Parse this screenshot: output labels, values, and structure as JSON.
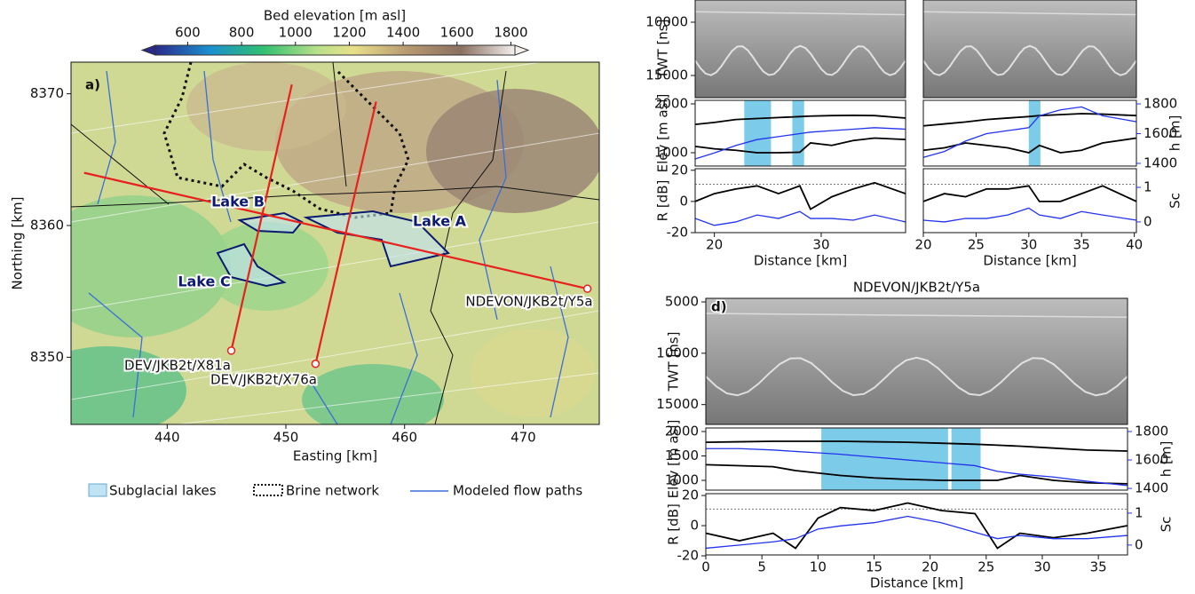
{
  "chart_data": [
    {
      "type": "map",
      "panel_label": "a)",
      "colorbar_label": "Bed elevation [m asl]",
      "clim": [
        480,
        1815
      ],
      "colorbar_ticks": [
        600,
        800,
        1000,
        1200,
        1400,
        1600,
        1800
      ],
      "xlabel": "Easting [km]",
      "ylabel": "Northing [km]",
      "xlim": [
        431.9,
        476.4
      ],
      "ylim": [
        8344.9,
        8372.4
      ],
      "xticks": [
        440,
        450,
        460,
        470
      ],
      "yticks": [
        8350,
        8360,
        8370
      ],
      "lakes": [
        "Lake A",
        "Lake B",
        "Lake C"
      ],
      "profiles": [
        {
          "name": "NDEVON/JKB2t/Y5a",
          "color": "#e8201e",
          "x": [
            475.4,
            433.0
          ],
          "y": [
            8355.2,
            8364.0
          ]
        },
        {
          "name": "DEV/JKB2t/X81a",
          "color": "#e8201e",
          "x": [
            445.4,
            450.5
          ],
          "y": [
            8350.5,
            8370.7
          ]
        },
        {
          "name": "DEV/JKB2t/X76a",
          "color": "#e8201e",
          "x": [
            452.5,
            457.6
          ],
          "y": [
            8349.5,
            8369.4
          ]
        }
      ],
      "legend": [
        "Subglacial lakes",
        "Brine network",
        "Modeled flow paths"
      ]
    },
    {
      "type": "profile",
      "xlabel": "Distance [km]",
      "xlim": [
        18.2,
        37.9
      ],
      "xticks": [
        20,
        30
      ],
      "radargram": {
        "ylabel": "TWT [ns]",
        "ylim": [
          17083,
          7917
        ],
        "yticks": [
          10000,
          15000
        ]
      },
      "elevation": {
        "ylabel": "Elev [m asl]",
        "ylim": [
          727,
          2073
        ],
        "yticks": [
          1000,
          2000
        ],
        "y2lim": [
          1382,
          1824
        ],
        "lake_spans": [
          [
            22.8,
            25.3
          ],
          [
            27.3,
            28.4
          ]
        ],
        "x": [
          18.2,
          20,
          22,
          24,
          26,
          28,
          29,
          31,
          33,
          35,
          37.9
        ],
        "series": [
          {
            "color": "#000000",
            "values": [
              1580,
              1620,
              1680,
              1700,
              1720,
              1740,
              1750,
              1760,
              1765,
              1760,
              1710
            ]
          },
          {
            "color": "#000000",
            "values": [
              1130,
              1080,
              1050,
              1000,
              1000,
              1010,
              1200,
              1150,
              1250,
              1300,
              1270
            ]
          },
          {
            "color": "#2233ee",
            "axis": "y2",
            "values": [
              1430,
              1470,
              1520,
              1560,
              1580,
              1600,
              1610,
              1620,
              1630,
              1640,
              1630
            ]
          }
        ]
      },
      "reflectivity": {
        "ylabel": "R [dB]",
        "ylim": [
          -20,
          21
        ],
        "yticks": [
          -20,
          0,
          20
        ],
        "y2lim": [
          -0.31,
          1.54
        ],
        "reference_line": 11,
        "x": [
          18.2,
          20,
          22,
          24,
          26,
          28,
          29,
          31,
          33,
          35,
          37.9
        ],
        "series": [
          {
            "color": "#000000",
            "values": [
              0,
              5,
              8,
              10,
              5,
              10,
              -5,
              3,
              8,
              12,
              5
            ]
          },
          {
            "color": "#2233ee",
            "axis": "y2",
            "values": [
              0.1,
              -0.1,
              0,
              0.2,
              0.1,
              0.3,
              0.1,
              0.1,
              0.05,
              0.2,
              0
            ]
          }
        ]
      }
    },
    {
      "type": "profile",
      "xlabel": "Distance [km]",
      "xlim": [
        20,
        40.2
      ],
      "xticks": [
        20,
        25,
        30,
        35,
        40
      ],
      "radargram": {
        "ylim": [
          17083,
          7917
        ]
      },
      "elevation": {
        "y2label": "h [m]",
        "ylim": [
          727,
          2073
        ],
        "y2lim": [
          1382,
          1824
        ],
        "y2ticks": [
          1400,
          1600,
          1800
        ],
        "lake_spans": [
          [
            30,
            31.1
          ]
        ],
        "x": [
          20,
          22,
          24,
          26,
          28,
          30,
          31,
          33,
          35,
          37,
          40.2
        ],
        "series": [
          {
            "color": "#000000",
            "values": [
              1550,
              1590,
              1630,
              1680,
              1710,
              1740,
              1760,
              1780,
              1800,
              1790,
              1760
            ]
          },
          {
            "color": "#000000",
            "values": [
              1050,
              1100,
              1200,
              1150,
              1100,
              1000,
              1150,
              1000,
              1050,
              1200,
              1300
            ]
          },
          {
            "color": "#2233ee",
            "axis": "y2",
            "values": [
              1440,
              1480,
              1550,
              1600,
              1620,
              1640,
              1720,
              1760,
              1780,
              1720,
              1680
            ]
          }
        ]
      },
      "reflectivity": {
        "y2label": "Sc",
        "ylim": [
          -20,
          21
        ],
        "y2lim": [
          -0.31,
          1.54
        ],
        "y2ticks": [
          0,
          1
        ],
        "reference_line": 11,
        "x": [
          20,
          22,
          24,
          26,
          28,
          30,
          31,
          33,
          35,
          37,
          40.2
        ],
        "series": [
          {
            "color": "#000000",
            "values": [
              0,
              5,
              3,
              8,
              8,
              10,
              0,
              0,
              5,
              10,
              0
            ]
          },
          {
            "color": "#2233ee",
            "axis": "y2",
            "values": [
              0.05,
              0,
              0.1,
              0.1,
              0.2,
              0.4,
              0.2,
              0.1,
              0.3,
              0.2,
              0.05
            ]
          }
        ]
      }
    },
    {
      "type": "profile",
      "title": "NDEVON/JKB2t/Y5a",
      "panel_label": "d)",
      "xlabel": "Distance [km]",
      "xlim": [
        0,
        37.6
      ],
      "xticks": [
        0,
        5,
        10,
        15,
        20,
        25,
        30,
        35
      ],
      "radargram": {
        "ylabel": "TWT [ns]",
        "ylim": [
          16930,
          4650
        ],
        "yticks": [
          5000,
          10000,
          15000
        ]
      },
      "elevation": {
        "ylabel": "Elev [m asl]",
        "y2label": "h [m]",
        "ylim": [
          800,
          2073
        ],
        "yticks": [
          1000,
          1500,
          2000
        ],
        "y2lim": [
          1388,
          1825
        ],
        "y2ticks": [
          1400,
          1600,
          1800
        ],
        "lake_spans": [
          [
            10.3,
            21.6
          ],
          [
            21.9,
            24.5
          ]
        ],
        "x": [
          0,
          3,
          6,
          8,
          10,
          12,
          15,
          18,
          21,
          24,
          26,
          28,
          31,
          34,
          37.6
        ],
        "series": [
          {
            "color": "#000000",
            "values": [
              1780,
              1790,
              1800,
              1800,
              1800,
              1800,
              1790,
              1780,
              1760,
              1740,
              1720,
              1700,
              1660,
              1620,
              1600
            ]
          },
          {
            "color": "#000000",
            "values": [
              1320,
              1300,
              1280,
              1200,
              1150,
              1100,
              1050,
              1020,
              1000,
              1000,
              1000,
              1100,
              1000,
              950,
              930
            ]
          },
          {
            "color": "#2233ee",
            "axis": "y2",
            "values": [
              1680,
              1680,
              1670,
              1660,
              1650,
              1640,
              1620,
              1600,
              1580,
              1560,
              1520,
              1500,
              1480,
              1450,
              1420
            ]
          }
        ]
      },
      "reflectivity": {
        "ylabel": "R [dB]",
        "y2label": "Sc",
        "ylim": [
          -19.4,
          21.2
        ],
        "yticks": [
          -20,
          0,
          20
        ],
        "y2lim": [
          -0.31,
          1.61
        ],
        "y2ticks": [
          0,
          1
        ],
        "reference_line": 11,
        "x": [
          0,
          3,
          6,
          8,
          10,
          12,
          15,
          18,
          21,
          24,
          26,
          28,
          31,
          34,
          37.6
        ],
        "series": [
          {
            "color": "#000000",
            "values": [
              -5,
              -10,
              -5,
              -15,
              5,
              12,
              10,
              15,
              10,
              8,
              -15,
              -5,
              -8,
              -5,
              0
            ]
          },
          {
            "color": "#2233ee",
            "axis": "y2",
            "values": [
              -0.1,
              0,
              0.1,
              0.2,
              0.5,
              0.6,
              0.7,
              0.9,
              0.7,
              0.4,
              0.2,
              0.3,
              0.2,
              0.2,
              0.3
            ]
          }
        ]
      }
    }
  ]
}
